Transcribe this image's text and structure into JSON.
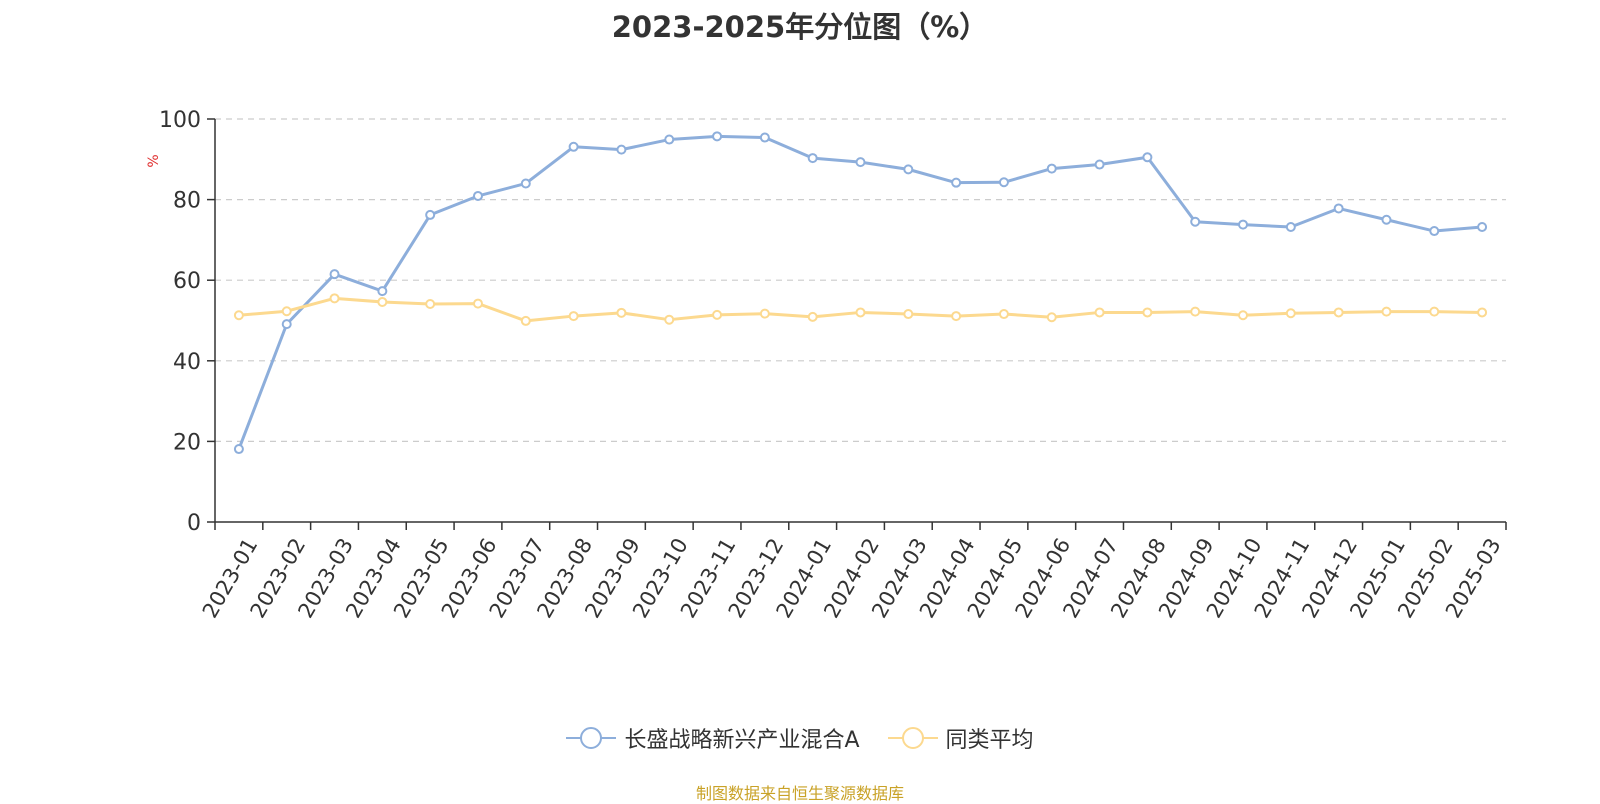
{
  "title": "2023-2025年分位图（%）",
  "source_note": "制图数据来自恒生聚源数据库",
  "colors": {
    "series_fund": "#8daedb",
    "series_avg": "#fcd98f",
    "axis": "#333333",
    "grid": "#cccccc",
    "ylabel": "#e03030",
    "source": "#c9a227"
  },
  "chart_data": {
    "type": "line",
    "title": "2023-2025年分位图（%）",
    "xlabel": "",
    "ylabel": "%",
    "ylim": [
      0,
      100
    ],
    "yticks": [
      0,
      20,
      40,
      60,
      80,
      100
    ],
    "grid": true,
    "legend_position": "bottom",
    "categories": [
      "2023-01",
      "2023-02",
      "2023-03",
      "2023-04",
      "2023-05",
      "2023-06",
      "2023-07",
      "2023-08",
      "2023-09",
      "2023-10",
      "2023-11",
      "2023-12",
      "2024-01",
      "2024-02",
      "2024-03",
      "2024-04",
      "2024-05",
      "2024-06",
      "2024-07",
      "2024-08",
      "2024-09",
      "2024-10",
      "2024-11",
      "2024-12",
      "2025-01",
      "2025-02",
      "2025-03"
    ],
    "series": [
      {
        "name": "长盛战略新兴产业混合A",
        "color": "#8daedb",
        "values": [
          18.1,
          49.1,
          61.5,
          57.3,
          76.2,
          80.9,
          84.0,
          93.1,
          92.4,
          94.9,
          95.7,
          95.4,
          90.3,
          89.3,
          87.5,
          84.2,
          84.3,
          87.7,
          88.7,
          90.5,
          74.5,
          73.8,
          73.2,
          77.8,
          75.0,
          72.2,
          73.2
        ]
      },
      {
        "name": "同类平均",
        "color": "#fcd98f",
        "values": [
          51.3,
          52.3,
          55.5,
          54.6,
          54.1,
          54.2,
          49.9,
          51.1,
          51.9,
          50.2,
          51.4,
          51.7,
          50.9,
          52.0,
          51.6,
          51.1,
          51.6,
          50.8,
          52.0,
          52.0,
          52.2,
          51.3,
          51.8,
          52.0,
          52.2,
          52.2,
          52.0
        ]
      }
    ]
  }
}
